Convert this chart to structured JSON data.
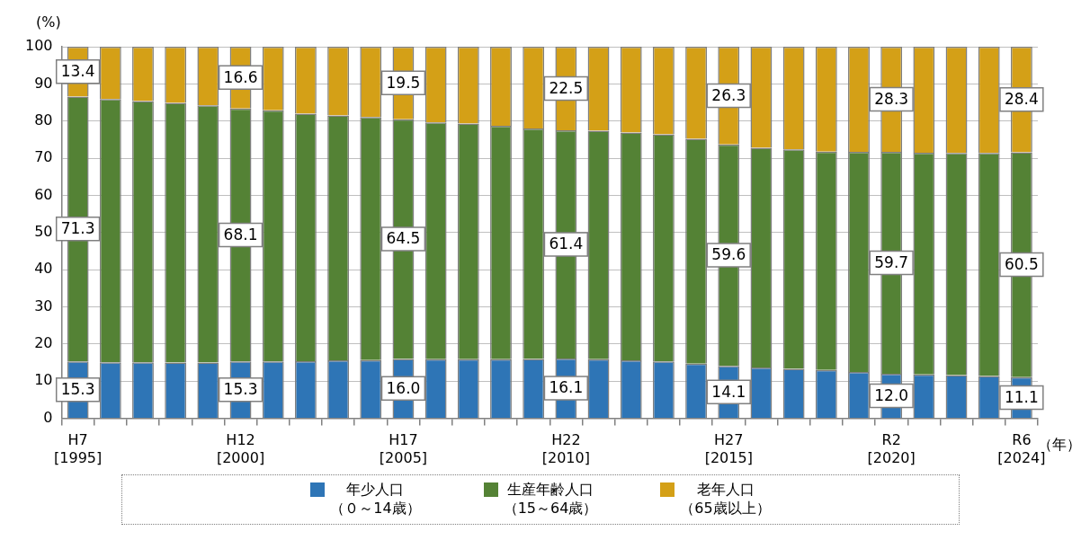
{
  "chart_data": {
    "type": "bar",
    "stacked": true,
    "ylabel": "(%)",
    "xlabel": "（年）",
    "categories": [
      "H7 [1995]",
      null,
      null,
      null,
      null,
      "H12 [2000]",
      null,
      null,
      null,
      null,
      "H17 [2005]",
      null,
      null,
      null,
      null,
      "H22 [2010]",
      null,
      null,
      null,
      null,
      "H27 [2015]",
      null,
      null,
      null,
      null,
      "R2 [2020]",
      null,
      null,
      null,
      "R6 [2024]"
    ],
    "ylim": [
      0,
      100
    ],
    "yticks": [
      0,
      10,
      20,
      30,
      40,
      50,
      60,
      70,
      80,
      90,
      100
    ],
    "grid": "y",
    "legend": "bottom",
    "series": [
      {
        "name": "年少人口（０～14歳）",
        "color": "#2e75b6",
        "values": [
          15.3,
          15.1,
          15.1,
          15.0,
          15.0,
          15.3,
          15.3,
          15.4,
          15.6,
          15.7,
          16.0,
          15.9,
          15.9,
          15.9,
          16.0,
          16.1,
          15.9,
          15.6,
          15.3,
          14.7,
          14.1,
          13.7,
          13.3,
          13.0,
          12.5,
          12.0,
          11.8,
          11.6,
          11.4,
          11.1
        ],
        "value_labels": [
          "15.3",
          null,
          null,
          null,
          null,
          "15.3",
          null,
          null,
          null,
          null,
          "16.0",
          null,
          null,
          null,
          null,
          "16.1",
          null,
          null,
          null,
          null,
          "14.1",
          null,
          null,
          null,
          null,
          "12.0",
          null,
          null,
          null,
          "11.1"
        ]
      },
      {
        "name": "生産年齢人口（15～64歳）",
        "color": "#548235",
        "values": [
          71.3,
          70.8,
          70.3,
          69.9,
          69.2,
          68.1,
          67.6,
          66.6,
          65.9,
          65.4,
          64.5,
          63.7,
          63.4,
          62.8,
          62.0,
          61.4,
          61.5,
          61.3,
          61.1,
          60.5,
          59.6,
          59.1,
          59.1,
          58.8,
          59.2,
          59.7,
          59.7,
          59.8,
          60.0,
          60.5
        ],
        "value_labels": [
          "71.3",
          null,
          null,
          null,
          null,
          "68.1",
          null,
          null,
          null,
          null,
          "64.5",
          null,
          null,
          null,
          null,
          "61.4",
          null,
          null,
          null,
          null,
          "59.6",
          null,
          null,
          null,
          null,
          "59.7",
          null,
          null,
          null,
          "60.5"
        ]
      },
      {
        "name": "老年人口（65歳以上）",
        "color": "#d4a017",
        "values": [
          13.4,
          14.1,
          14.6,
          15.1,
          15.8,
          16.6,
          17.1,
          18.0,
          18.5,
          18.9,
          19.5,
          20.4,
          20.7,
          21.3,
          22.0,
          22.5,
          22.6,
          23.1,
          23.6,
          24.8,
          26.3,
          27.2,
          27.6,
          28.2,
          28.3,
          28.3,
          28.5,
          28.6,
          28.6,
          28.4
        ],
        "value_labels": [
          "13.4",
          null,
          null,
          null,
          null,
          "16.6",
          null,
          null,
          null,
          null,
          "19.5",
          null,
          null,
          null,
          null,
          "22.5",
          null,
          null,
          null,
          null,
          "26.3",
          null,
          null,
          null,
          null,
          "28.3",
          null,
          null,
          null,
          "28.4"
        ]
      }
    ]
  }
}
